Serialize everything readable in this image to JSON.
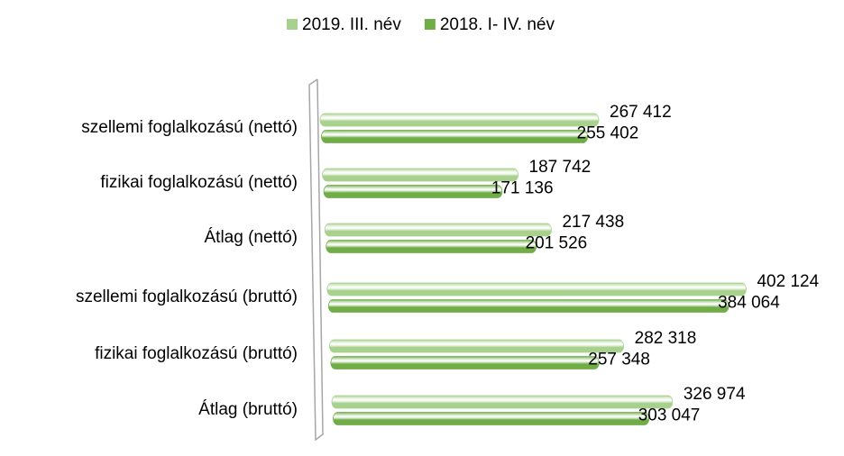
{
  "chart_data": {
    "type": "bar",
    "orientation": "horizontal",
    "categories": [
      "szellemi foglalkozású (nettó)",
      "fizikai foglalkozású (nettó)",
      "Átlag (nettó)",
      "szellemi foglalkozású (bruttó)",
      "fizikai foglalkozású (bruttó)",
      "Átlag (bruttó)"
    ],
    "series": [
      {
        "name": "2019. III. név",
        "color": "#a9d18e",
        "values": [
          267412,
          187742,
          217438,
          402124,
          282318,
          326974
        ],
        "value_labels": [
          "267 412",
          "187 742",
          "217 438",
          "402 124",
          "282 318",
          "326 974"
        ]
      },
      {
        "name": "2018. I- IV. név",
        "color": "#70ad47",
        "values": [
          255402,
          171136,
          201526,
          384064,
          257348,
          303047
        ],
        "value_labels": [
          "255 402",
          "171 136",
          "201 526",
          "384 064",
          "257 348",
          "303 047"
        ]
      }
    ],
    "xlim": [
      0,
      450000
    ],
    "legend": "top"
  }
}
